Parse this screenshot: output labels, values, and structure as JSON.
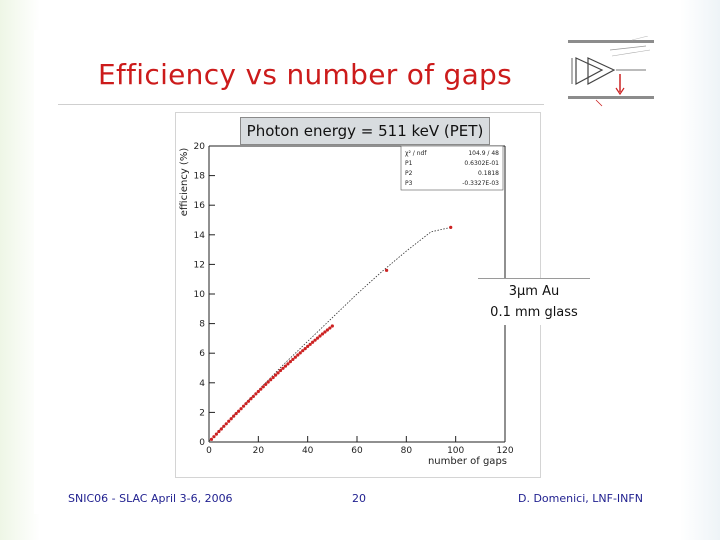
{
  "slide": {
    "title": "Efficiency vs number of gaps",
    "energy_box": "Photon energy = 511 keV (PET)",
    "coating_line1": "3μm Au",
    "coating_line2": "0.1 mm glass",
    "footer_left": "SNIC06 - SLAC April 3-6, 2006",
    "footer_center": "20",
    "footer_right": "D. Domenici, LNF-INFN"
  },
  "colors": {
    "title": "#cc1b1b",
    "points": "#cc2222",
    "footer": "#1f1f8f"
  },
  "stats_box": {
    "rows": [
      {
        "label": "χ² / ndf",
        "value": "104.9 / 48"
      },
      {
        "label": "P1",
        "value": "0.6302E-01"
      },
      {
        "label": "P2",
        "value": "0.1818"
      },
      {
        "label": "P3",
        "value": "-0.3327E-03"
      }
    ]
  },
  "chart_data": {
    "type": "scatter",
    "xlabel": "number of gaps",
    "ylabel": "efficiency (%)",
    "xlim": [
      0,
      120
    ],
    "ylim": [
      0,
      20
    ],
    "xticks": [
      0,
      20,
      40,
      60,
      80,
      100,
      120
    ],
    "yticks": [
      0,
      2,
      4,
      6,
      8,
      10,
      12,
      14,
      16,
      18,
      20
    ],
    "grid": false,
    "series": [
      {
        "kind": "points",
        "x": [
          1,
          2,
          3,
          4,
          5,
          6,
          7,
          8,
          9,
          10,
          11,
          12,
          13,
          14,
          15,
          16,
          17,
          18,
          19,
          20,
          21,
          22,
          23,
          24,
          25,
          26,
          27,
          28,
          29,
          30,
          31,
          32,
          33,
          34,
          35,
          36,
          37,
          38,
          39,
          40,
          41,
          42,
          43,
          44,
          45,
          46,
          47,
          48,
          49,
          50,
          72,
          98
        ],
        "y": [
          0.18,
          0.36,
          0.53,
          0.71,
          0.88,
          1.06,
          1.23,
          1.4,
          1.57,
          1.75,
          1.92,
          2.08,
          2.25,
          2.42,
          2.59,
          2.75,
          2.92,
          3.08,
          3.25,
          3.41,
          3.57,
          3.73,
          3.89,
          4.05,
          4.21,
          4.36,
          4.52,
          4.67,
          4.83,
          4.98,
          5.13,
          5.28,
          5.43,
          5.58,
          5.73,
          5.88,
          6.02,
          6.17,
          6.31,
          6.46,
          6.6,
          6.74,
          6.88,
          7.02,
          7.16,
          7.3,
          7.43,
          7.57,
          7.7,
          7.84,
          11.6,
          14.5
        ]
      },
      {
        "kind": "fit",
        "x": [
          0,
          10,
          20,
          30,
          40,
          50,
          60,
          70,
          80,
          90,
          98
        ],
        "y": [
          0.06,
          1.79,
          3.5,
          5.2,
          6.8,
          8.4,
          10.0,
          11.5,
          12.9,
          14.2,
          14.5
        ]
      }
    ]
  }
}
